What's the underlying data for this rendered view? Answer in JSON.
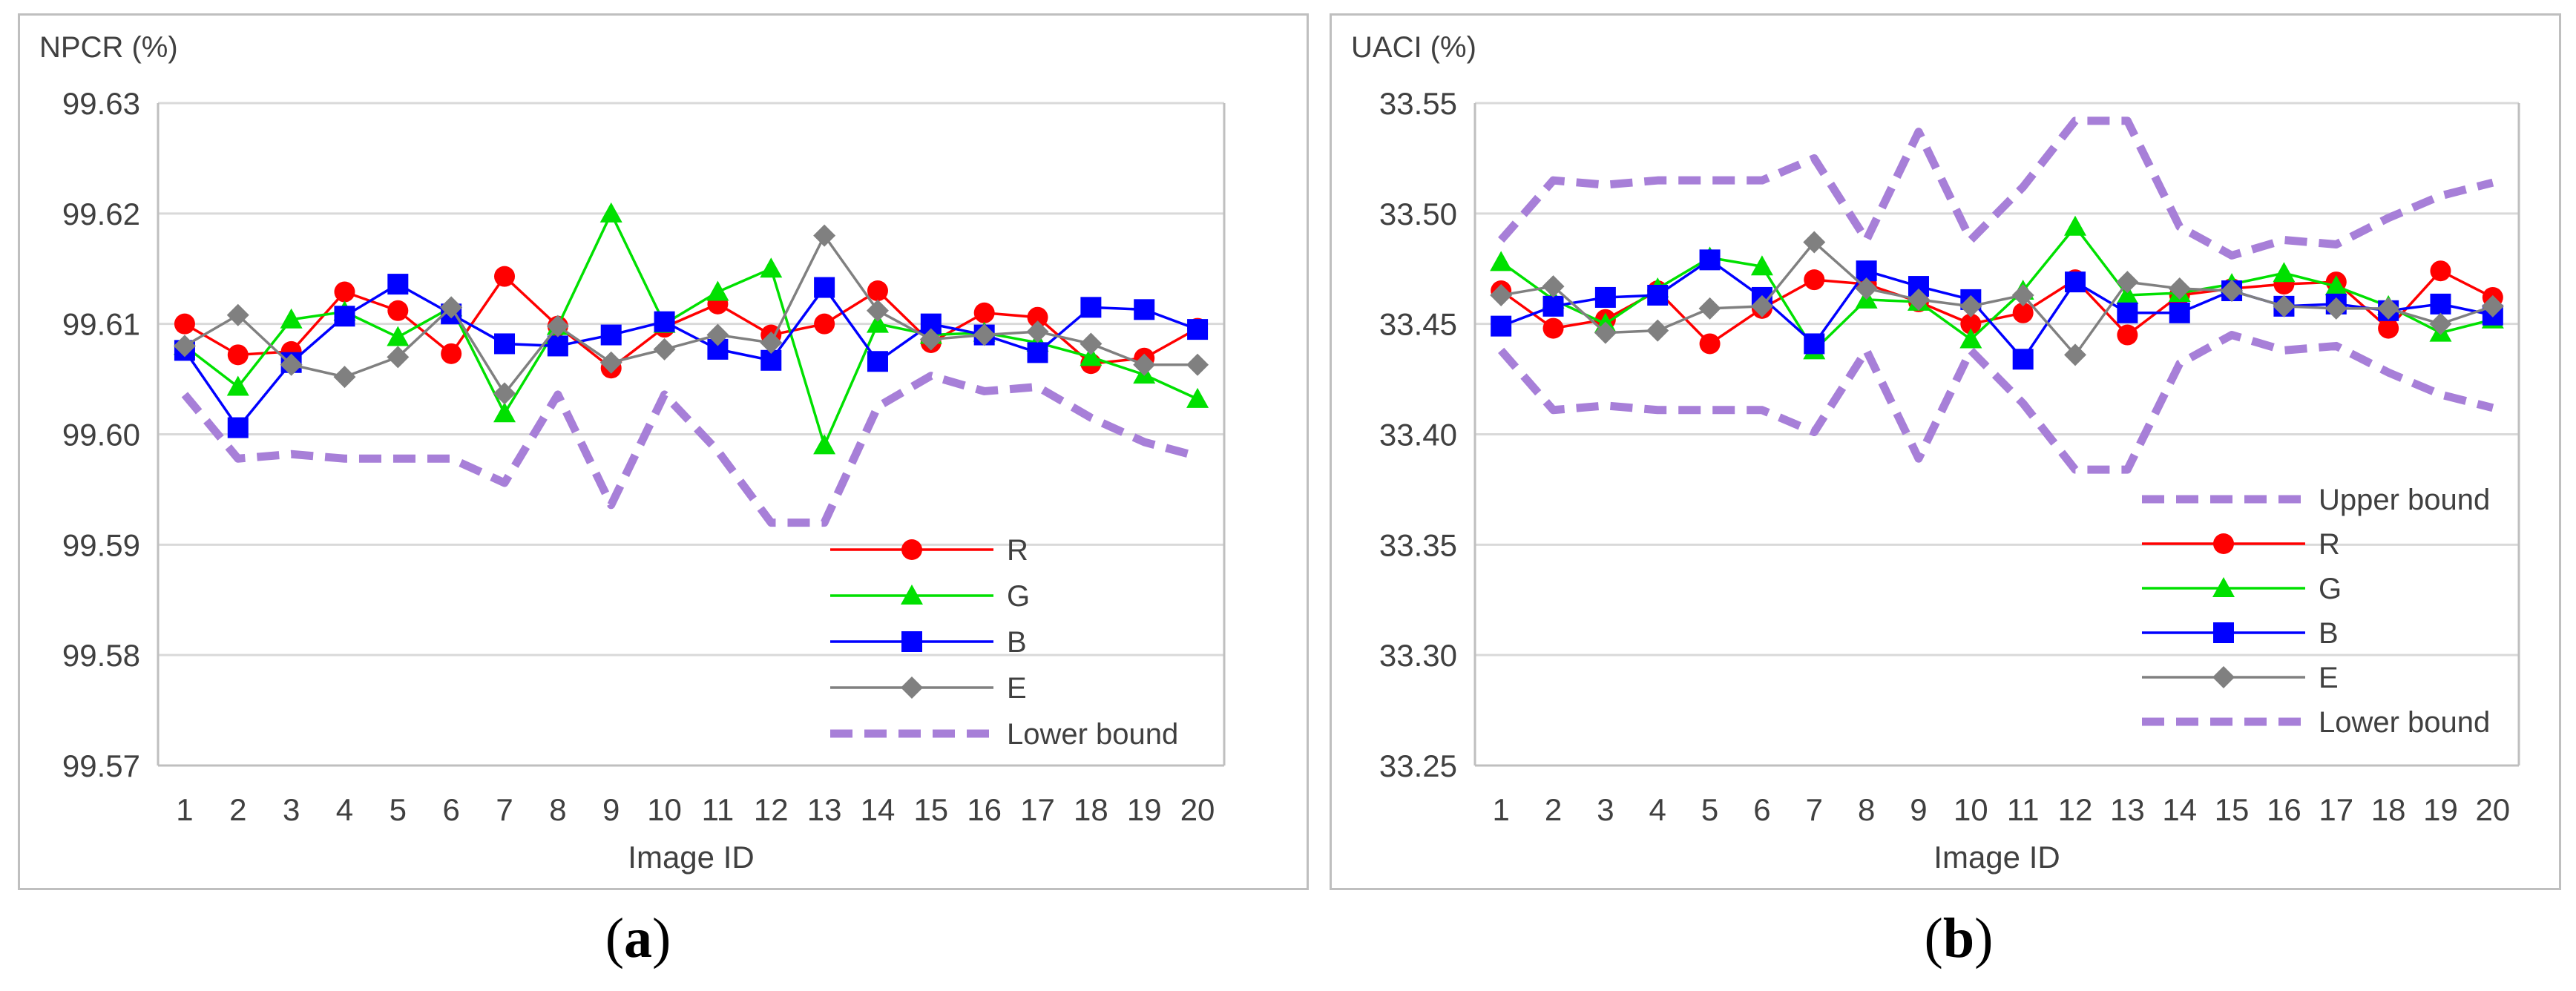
{
  "colors": {
    "R": "#ff0000",
    "G": "#00e000",
    "B": "#0000ff",
    "E": "#808080",
    "bound": "#a77fd8",
    "grid": "#d9d9d9",
    "axis": "#bfbfbf"
  },
  "chart_data": [
    {
      "type": "line",
      "panel_label": "a",
      "title": "NPCR (%)",
      "xlabel": "Image ID",
      "ylabel": "NPCR (%)",
      "x": [
        1,
        2,
        3,
        4,
        5,
        6,
        7,
        8,
        9,
        10,
        11,
        12,
        13,
        14,
        15,
        16,
        17,
        18,
        19,
        20
      ],
      "ylim": [
        99.57,
        99.63
      ],
      "yticks": [
        99.57,
        99.58,
        99.59,
        99.6,
        99.61,
        99.62,
        99.63
      ],
      "ytick_labels": [
        "99.57",
        "99.58",
        "99.59",
        "99.60",
        "99.61",
        "99.62",
        "99.63"
      ],
      "legend_position": "bottom-right",
      "series": [
        {
          "name": "R",
          "marker": "circle",
          "values": [
            99.61,
            99.6072,
            99.6075,
            99.6129,
            99.6112,
            99.6073,
            99.6143,
            99.6098,
            99.606,
            99.6097,
            99.6118,
            99.609,
            99.61,
            99.613,
            99.6083,
            99.611,
            99.6106,
            99.6064,
            99.6069,
            99.6096
          ]
        },
        {
          "name": "G",
          "marker": "triangle",
          "values": [
            99.608,
            99.6043,
            99.6104,
            99.6111,
            99.6088,
            99.6115,
            99.6019,
            99.6098,
            99.62,
            99.61,
            99.6129,
            99.615,
            99.599,
            99.61,
            99.609,
            99.6092,
            99.6083,
            99.607,
            99.6054,
            99.6032
          ]
        },
        {
          "name": "B",
          "marker": "square",
          "values": [
            99.6076,
            99.6006,
            99.6065,
            99.6107,
            99.6136,
            99.6109,
            99.6082,
            99.608,
            99.609,
            99.6102,
            99.6077,
            99.6067,
            99.6133,
            99.6066,
            99.61,
            99.609,
            99.6074,
            99.6115,
            99.6113,
            99.6095
          ]
        },
        {
          "name": "E",
          "marker": "diamond",
          "values": [
            99.608,
            99.6108,
            99.6063,
            99.6052,
            99.607,
            99.6115,
            99.6037,
            99.6098,
            99.6065,
            99.6077,
            99.609,
            99.6083,
            99.618,
            99.6112,
            99.6086,
            99.609,
            99.6093,
            99.6082,
            99.6063,
            99.6063
          ]
        },
        {
          "name": "Lower bound",
          "style": "dashed",
          "values": [
            99.6036,
            99.5978,
            99.5982,
            99.5978,
            99.5978,
            99.5978,
            99.5956,
            99.6036,
            99.5936,
            99.6036,
            99.5985,
            99.592,
            99.592,
            99.6025,
            99.6053,
            99.6039,
            99.6043,
            99.6015,
            99.5993,
            99.598
          ]
        }
      ]
    },
    {
      "type": "line",
      "panel_label": "b",
      "title": "UACI (%)",
      "xlabel": "Image ID",
      "ylabel": "UACI (%)",
      "x": [
        1,
        2,
        3,
        4,
        5,
        6,
        7,
        8,
        9,
        10,
        11,
        12,
        13,
        14,
        15,
        16,
        17,
        18,
        19,
        20
      ],
      "ylim": [
        33.25,
        33.55
      ],
      "yticks": [
        33.25,
        33.3,
        33.35,
        33.4,
        33.45,
        33.5,
        33.55
      ],
      "ytick_labels": [
        "33.25",
        "33.30",
        "33.35",
        "33.40",
        "33.45",
        "33.50",
        "33.55"
      ],
      "legend_position": "bottom-right",
      "series": [
        {
          "name": "Upper bound",
          "style": "dashed",
          "values": [
            33.488,
            33.515,
            33.513,
            33.515,
            33.515,
            33.515,
            33.525,
            33.488,
            33.537,
            33.488,
            33.512,
            33.542,
            33.542,
            33.494,
            33.481,
            33.488,
            33.486,
            33.498,
            33.508,
            33.514
          ]
        },
        {
          "name": "R",
          "marker": "circle",
          "values": [
            33.465,
            33.448,
            33.452,
            33.465,
            33.441,
            33.457,
            33.47,
            33.468,
            33.46,
            33.45,
            33.455,
            33.47,
            33.445,
            33.463,
            33.466,
            33.468,
            33.469,
            33.448,
            33.474,
            33.462
          ]
        },
        {
          "name": "G",
          "marker": "triangle",
          "values": [
            33.478,
            33.461,
            33.45,
            33.466,
            33.48,
            33.476,
            33.438,
            33.461,
            33.46,
            33.443,
            33.465,
            33.494,
            33.463,
            33.464,
            33.468,
            33.473,
            33.467,
            33.458,
            33.446,
            33.452
          ]
        },
        {
          "name": "B",
          "marker": "square",
          "values": [
            33.449,
            33.458,
            33.462,
            33.463,
            33.479,
            33.462,
            33.441,
            33.474,
            33.467,
            33.461,
            33.434,
            33.469,
            33.455,
            33.455,
            33.465,
            33.458,
            33.459,
            33.456,
            33.459,
            33.454
          ]
        },
        {
          "name": "E",
          "marker": "diamond",
          "values": [
            33.463,
            33.467,
            33.446,
            33.447,
            33.457,
            33.458,
            33.487,
            33.466,
            33.461,
            33.458,
            33.463,
            33.436,
            33.469,
            33.466,
            33.465,
            33.458,
            33.457,
            33.457,
            33.45,
            33.458
          ]
        },
        {
          "name": "Lower bound",
          "style": "dashed",
          "values": [
            33.438,
            33.411,
            33.413,
            33.411,
            33.411,
            33.411,
            33.401,
            33.438,
            33.389,
            33.438,
            33.414,
            33.384,
            33.384,
            33.432,
            33.445,
            33.438,
            33.44,
            33.428,
            33.418,
            33.412
          ]
        }
      ]
    }
  ]
}
